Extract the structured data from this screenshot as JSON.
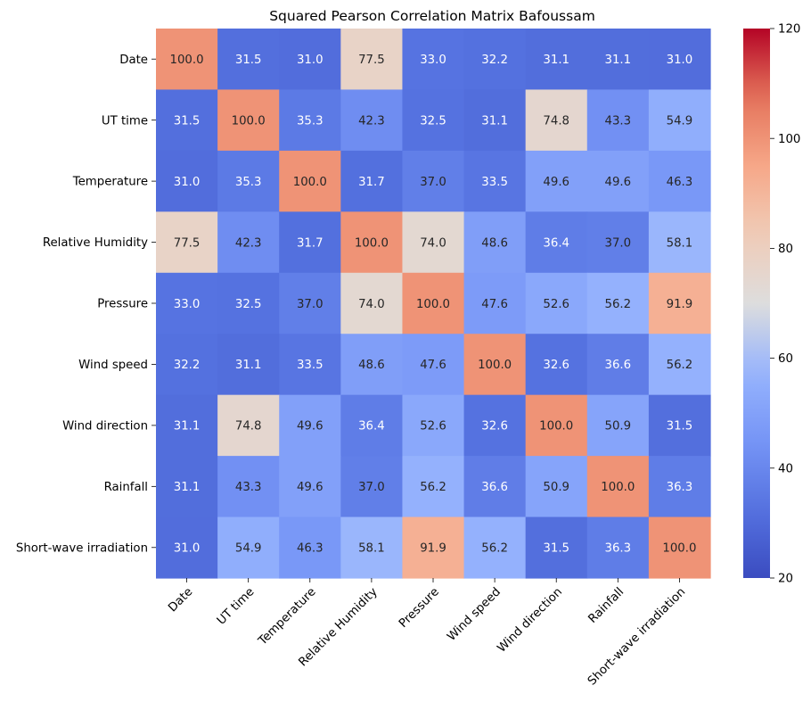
{
  "chart_data": {
    "type": "heatmap",
    "title": "Squared Pearson Correlation Matrix Bafoussam",
    "xlabel": "",
    "ylabel": "",
    "categories": [
      "Date",
      "UT time",
      "Temperature",
      "Relative Humidity",
      "Pressure",
      "Wind speed",
      "Wind direction",
      "Rainfall",
      "Short-wave irradiation"
    ],
    "values": [
      [
        100.0,
        31.5,
        31.0,
        77.5,
        33.0,
        32.2,
        31.1,
        31.1,
        31.0
      ],
      [
        31.5,
        100.0,
        35.3,
        42.3,
        32.5,
        31.1,
        74.8,
        43.3,
        54.9
      ],
      [
        31.0,
        35.3,
        100.0,
        31.7,
        37.0,
        33.5,
        49.6,
        49.6,
        46.3
      ],
      [
        77.5,
        42.3,
        31.7,
        100.0,
        74.0,
        48.6,
        36.4,
        37.0,
        58.1
      ],
      [
        33.0,
        32.5,
        37.0,
        74.0,
        100.0,
        47.6,
        52.6,
        56.2,
        91.9
      ],
      [
        32.2,
        31.1,
        33.5,
        48.6,
        47.6,
        100.0,
        32.6,
        36.6,
        56.2
      ],
      [
        31.1,
        74.8,
        49.6,
        36.4,
        52.6,
        32.6,
        100.0,
        50.9,
        31.5
      ],
      [
        31.1,
        43.3,
        49.6,
        37.0,
        56.2,
        36.6,
        50.9,
        100.0,
        36.3
      ],
      [
        31.0,
        54.9,
        46.3,
        58.1,
        91.9,
        56.2,
        31.5,
        36.3,
        100.0
      ]
    ],
    "value_format": "0.0",
    "colorbar": {
      "colormap": "coolwarm",
      "range": [
        20,
        120
      ],
      "ticks": [
        20,
        40,
        60,
        80,
        100,
        120
      ]
    },
    "grid": false,
    "legend": "colorbar-right"
  }
}
